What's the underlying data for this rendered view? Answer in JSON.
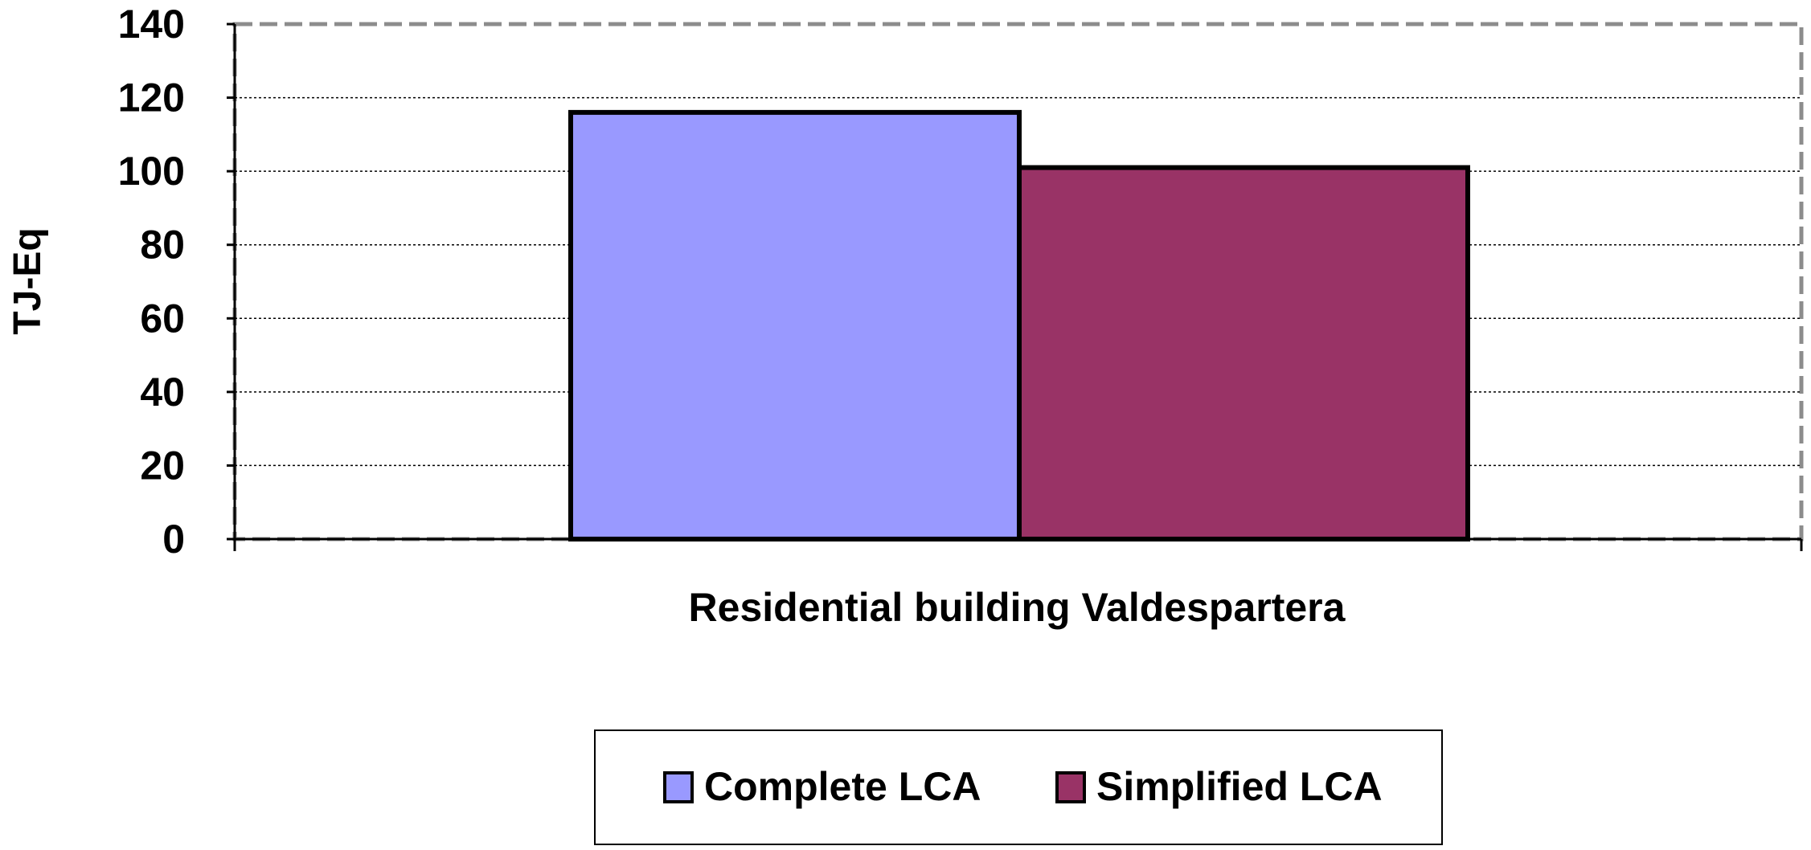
{
  "chart_data": {
    "type": "bar",
    "title": "",
    "xlabel": "Residential building Valdespartera",
    "ylabel": "TJ-Eq",
    "categories": [
      "Residential building Valdespartera"
    ],
    "series": [
      {
        "name": "Complete LCA",
        "values": [
          116
        ],
        "color": "#9999ff"
      },
      {
        "name": "Simplified LCA",
        "values": [
          101
        ],
        "color": "#993366"
      }
    ],
    "ylim": [
      0,
      140
    ],
    "yticks": [
      0,
      20,
      40,
      60,
      80,
      100,
      120,
      140
    ],
    "grid": true,
    "legend_position": "bottom"
  }
}
